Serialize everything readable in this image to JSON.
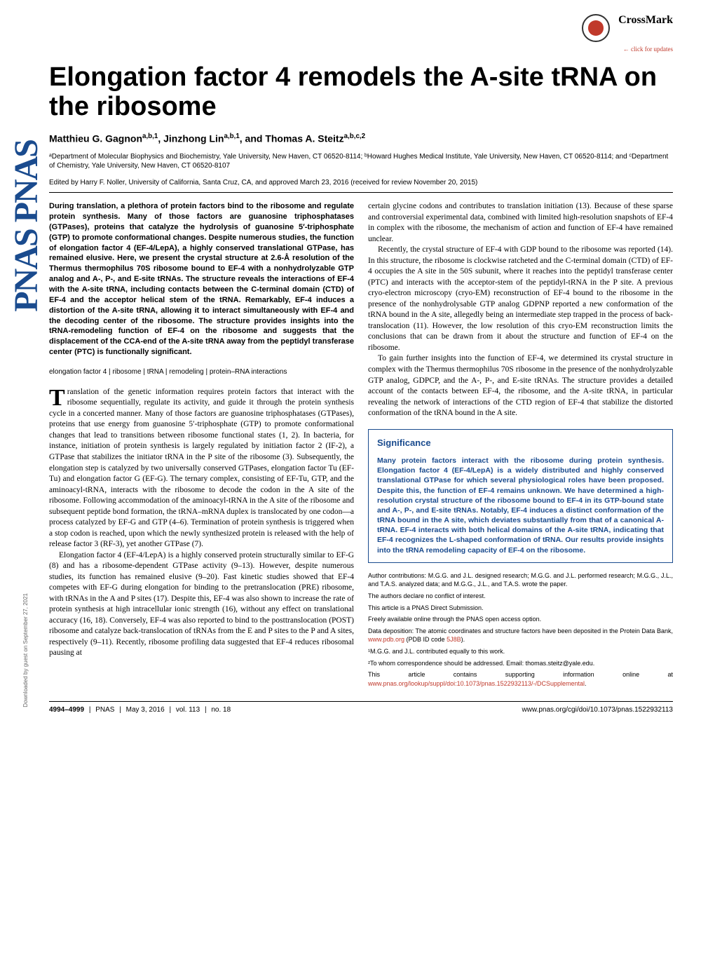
{
  "journal": {
    "vertical_logo": "PNAS PNAS",
    "crossmark_label": "CrossMark",
    "crossmark_sub": "← click for updates"
  },
  "article": {
    "title": "Elongation factor 4 remodels the A-site tRNA on the ribosome",
    "authors_html": "Matthieu G. Gagnon<sup>a,b,1</sup>, Jinzhong Lin<sup>a,b,1</sup>, and Thomas A. Steitz<sup>a,b,c,2</sup>",
    "affiliations": "ᵃDepartment of Molecular Biophysics and Biochemistry, Yale University, New Haven, CT 06520-8114; ᵇHoward Hughes Medical Institute, Yale University, New Haven, CT 06520-8114; and ᶜDepartment of Chemistry, Yale University, New Haven, CT 06520-8107",
    "edited": "Edited by Harry F. Noller, University of California, Santa Cruz, CA, and approved March 23, 2016 (received for review November 20, 2015)"
  },
  "abstract": "During translation, a plethora of protein factors bind to the ribosome and regulate protein synthesis. Many of those factors are guanosine triphosphatases (GTPases), proteins that catalyze the hydrolysis of guanosine 5′-triphosphate (GTP) to promote conformational changes. Despite numerous studies, the function of elongation factor 4 (EF-4/LepA), a highly conserved translational GTPase, has remained elusive. Here, we present the crystal structure at 2.6-Å resolution of the Thermus thermophilus 70S ribosome bound to EF-4 with a nonhydrolyzable GTP analog and A-, P-, and E-site tRNAs. The structure reveals the interactions of EF-4 with the A-site tRNA, including contacts between the C-terminal domain (CTD) of EF-4 and the acceptor helical stem of the tRNA. Remarkably, EF-4 induces a distortion of the A-site tRNA, allowing it to interact simultaneously with EF-4 and the decoding center of the ribosome. The structure provides insights into the tRNA-remodeling function of EF-4 on the ribosome and suggests that the displacement of the CCA-end of the A-site tRNA away from the peptidyl transferase center (PTC) is functionally significant.",
  "keywords": [
    "elongation factor 4",
    "ribosome",
    "tRNA",
    "remodeling",
    "protein–RNA interactions"
  ],
  "body": {
    "col1_para1": "ranslation of the genetic information requires protein factors that interact with the ribosome sequentially, regulate its activity, and guide it through the protein synthesis cycle in a concerted manner. Many of those factors are guanosine triphosphatases (GTPases), proteins that use energy from guanosine 5′-triphosphate (GTP) to promote conformational changes that lead to transitions between ribosome functional states (1, 2). In bacteria, for instance, initiation of protein synthesis is largely regulated by initiation factor 2 (IF-2), a GTPase that stabilizes the initiator tRNA in the P site of the ribosome (3). Subsequently, the elongation step is catalyzed by two universally conserved GTPases, elongation factor Tu (EF-Tu) and elongation factor G (EF-G). The ternary complex, consisting of EF-Tu, GTP, and the aminoacyl-tRNA, interacts with the ribosome to decode the codon in the A site of the ribosome. Following accommodation of the aminoacyl-tRNA in the A site of the ribosome and subsequent peptide bond formation, the tRNA–mRNA duplex is translocated by one codon—a process catalyzed by EF-G and GTP (4–6). Termination of protein synthesis is triggered when a stop codon is reached, upon which the newly synthesized protein is released with the help of release factor 3 (RF-3), yet another GTPase (7).",
    "col1_para2": "Elongation factor 4 (EF-4/LepA) is a highly conserved protein structurally similar to EF-G (8) and has a ribosome-dependent GTPase activity (9–13). However, despite numerous studies, its function has remained elusive (9–20). Fast kinetic studies showed that EF-4 competes with EF-G during elongation for binding to the pretranslocation (PRE) ribosome, with tRNAs in the A and P sites (17). Despite this, EF-4 was also shown to increase the rate of protein synthesis at high intracellular ionic strength (16), without any effect on translational accuracy (16, 18). Conversely, EF-4 was also reported to bind to the posttranslocation (POST) ribosome and catalyze back-translocation of tRNAs from the E and P sites to the P and A sites, respectively (9–11). Recently, ribosome profiling data suggested that EF-4 reduces ribosomal pausing at",
    "col2_para1": "certain glycine codons and contributes to translation initiation (13). Because of these sparse and controversial experimental data, combined with limited high-resolution snapshots of EF-4 in complex with the ribosome, the mechanism of action and function of EF-4 have remained unclear.",
    "col2_para2": "Recently, the crystal structure of EF-4 with GDP bound to the ribosome was reported (14). In this structure, the ribosome is clockwise ratcheted and the C-terminal domain (CTD) of EF-4 occupies the A site in the 50S subunit, where it reaches into the peptidyl transferase center (PTC) and interacts with the acceptor-stem of the peptidyl-tRNA in the P site. A previous cryo-electron microscopy (cryo-EM) reconstruction of EF-4 bound to the ribosome in the presence of the nonhydrolysable GTP analog GDPNP reported a new conformation of the tRNA bound in the A site, allegedly being an intermediate step trapped in the process of back-translocation (11). However, the low resolution of this cryo-EM reconstruction limits the conclusions that can be drawn from it about the structure and function of EF-4 on the ribosome.",
    "col2_para3": "To gain further insights into the function of EF-4, we determined its crystal structure in complex with the Thermus thermophilus 70S ribosome in the presence of the nonhydrolyzable GTP analog, GDPCP, and the A-, P-, and E-site tRNAs. The structure provides a detailed account of the contacts between EF-4, the ribosome, and the A-site tRNA, in particular revealing the network of interactions of the CTD region of EF-4 that stabilize the distorted conformation of the tRNA bound in the A site."
  },
  "significance": {
    "title": "Significance",
    "body": "Many protein factors interact with the ribosome during protein synthesis. Elongation factor 4 (EF-4/LepA) is a widely distributed and highly conserved translational GTPase for which several physiological roles have been proposed. Despite this, the function of EF-4 remains unknown. We have determined a high-resolution crystal structure of the ribosome bound to EF-4 in its GTP-bound state and A-, P-, and E-site tRNAs. Notably, EF-4 induces a distinct conformation of the tRNA bound in the A site, which deviates substantially from that of a canonical A-tRNA. EF-4 interacts with both helical domains of the A-site tRNA, indicating that EF-4 recognizes the L-shaped conformation of tRNA. Our results provide insights into the tRNA remodeling capacity of EF-4 on the ribosome."
  },
  "footnotes": {
    "contributions": "Author contributions: M.G.G. and J.L. designed research; M.G.G. and J.L. performed research; M.G.G., J.L., and T.A.S. analyzed data; and M.G.G., J.L., and T.A.S. wrote the paper.",
    "conflict": "The authors declare no conflict of interest.",
    "submission": "This article is a PNAS Direct Submission.",
    "openaccess": "Freely available online through the PNAS open access option.",
    "deposition_pre": "Data deposition: The atomic coordinates and structure factors have been deposited in the Protein Data Bank, ",
    "deposition_link": "www.pdb.org",
    "deposition_post": " (PDB ID code ",
    "deposition_code": "5J8B",
    "deposition_end": ").",
    "equal": "¹M.G.G. and J.L. contributed equally to this work.",
    "correspondence": "²To whom correspondence should be addressed. Email: thomas.steitz@yale.edu.",
    "supporting_pre": "This article contains supporting information online at ",
    "supporting_link": "www.pnas.org/lookup/suppl/doi:10.1073/pnas.1522932113/-/DCSupplemental",
    "supporting_end": "."
  },
  "footer": {
    "pages": "4994–4999",
    "journal": "PNAS",
    "date": "May 3, 2016",
    "volume": "vol. 113",
    "issue": "no. 18",
    "doi": "www.pnas.org/cgi/doi/10.1073/pnas.1522932113"
  },
  "download_note": "Downloaded by guest on September 27, 2021"
}
